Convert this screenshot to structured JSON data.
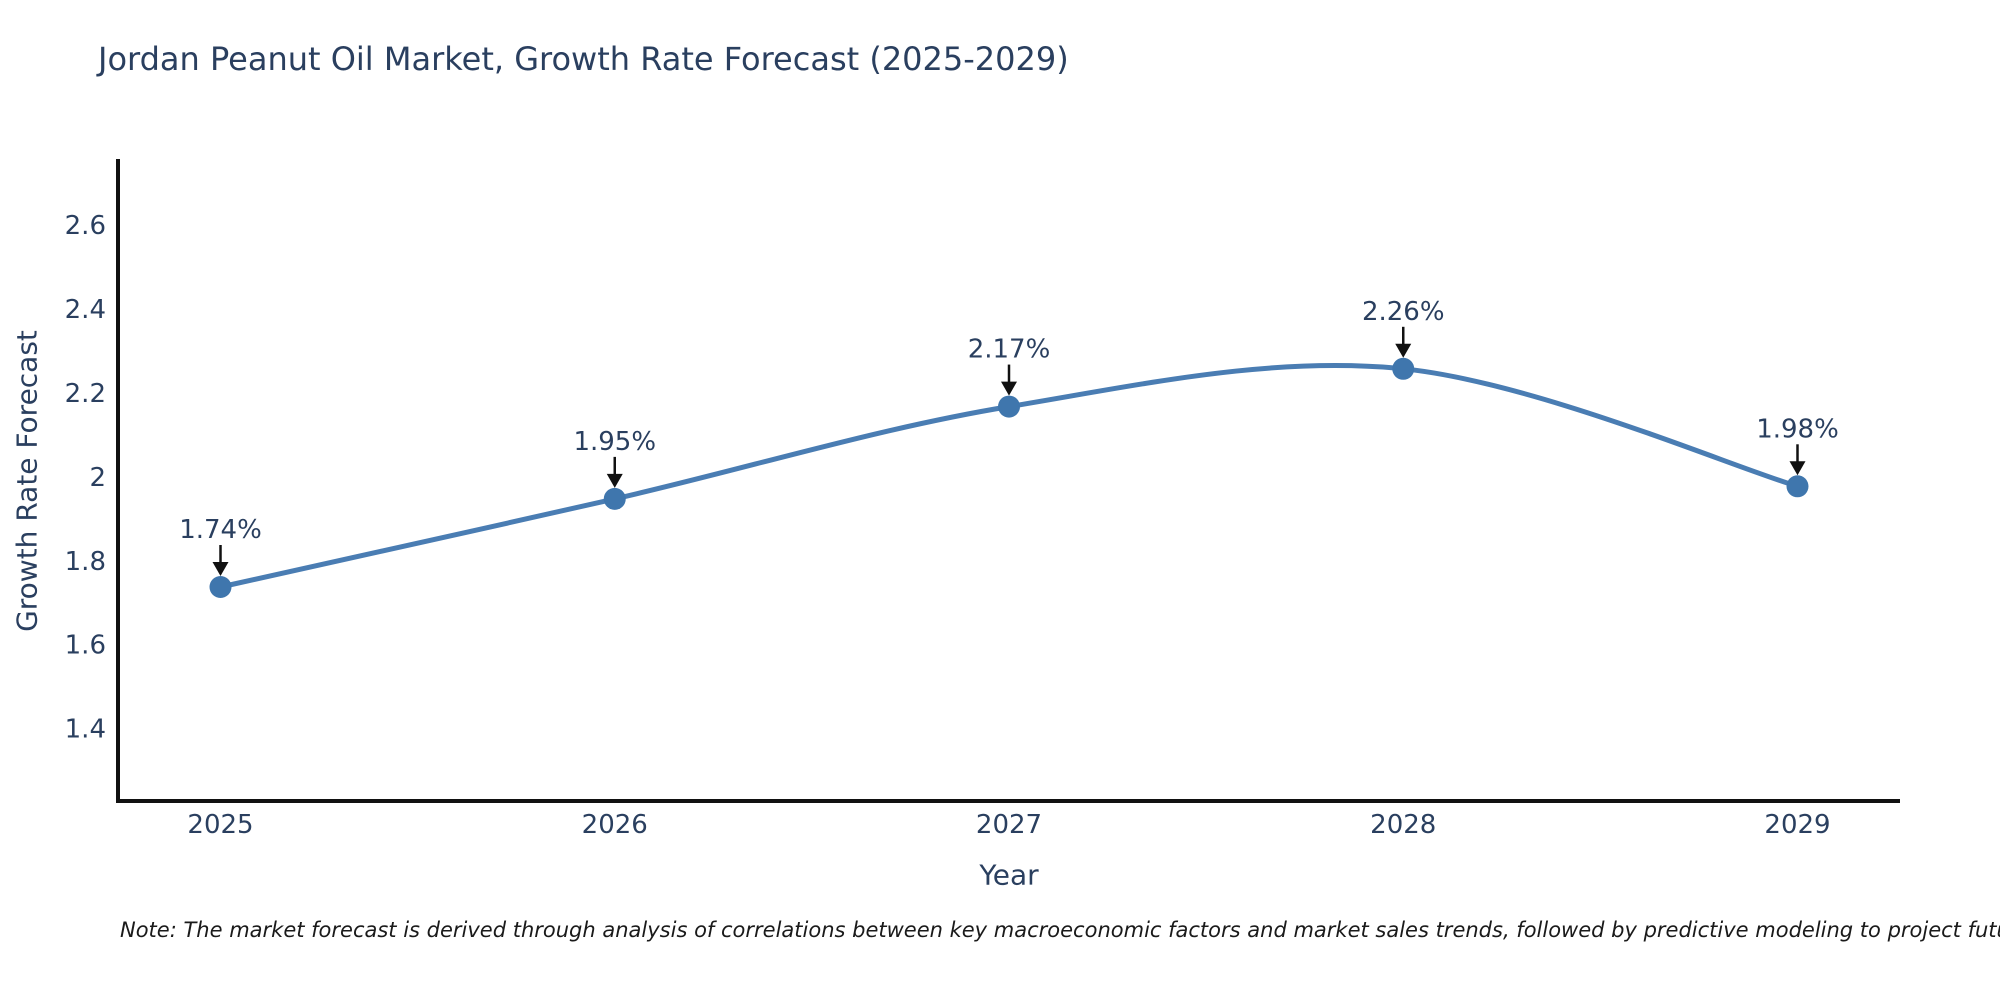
{
  "title": "Jordan Peanut Oil Market, Growth Rate Forecast (2025-2029)",
  "note": "Note: The market forecast is derived through analysis of correlations between key macroeconomic factors and market sales trends, followed by predictive modeling to project future sales",
  "chart_data": {
    "type": "line",
    "title": "Jordan Peanut Oil Market, Growth Rate Forecast (2025-2029)",
    "xlabel": "Year",
    "ylabel": "Growth Rate Forecast",
    "x": [
      2025,
      2026,
      2027,
      2028,
      2029
    ],
    "values": [
      1.74,
      1.95,
      2.17,
      2.26,
      1.98
    ],
    "point_labels": [
      "1.74%",
      "1.95%",
      "2.17%",
      "2.26%",
      "1.98%"
    ],
    "xtick_labels": [
      "2025",
      "2026",
      "2027",
      "2028",
      "2029"
    ],
    "yticks": [
      1.4,
      1.6,
      1.8,
      2.0,
      2.2,
      2.4,
      2.6
    ],
    "ytick_labels": [
      "1.4",
      "1.6",
      "1.8",
      "2",
      "2.2",
      "2.4",
      "2.6"
    ],
    "xlim": [
      2024.74,
      2029.26
    ],
    "ylim": [
      1.23,
      2.76
    ],
    "line_shape": "spline",
    "grid": false,
    "legend": false,
    "colors": {
      "line": "#4a7db3",
      "marker": "#3f76ad",
      "axis": "#111111",
      "text": "#2a3f5f",
      "arrow": "#111111",
      "note_text": "#1a1a1a",
      "background": "#ffffff"
    }
  }
}
